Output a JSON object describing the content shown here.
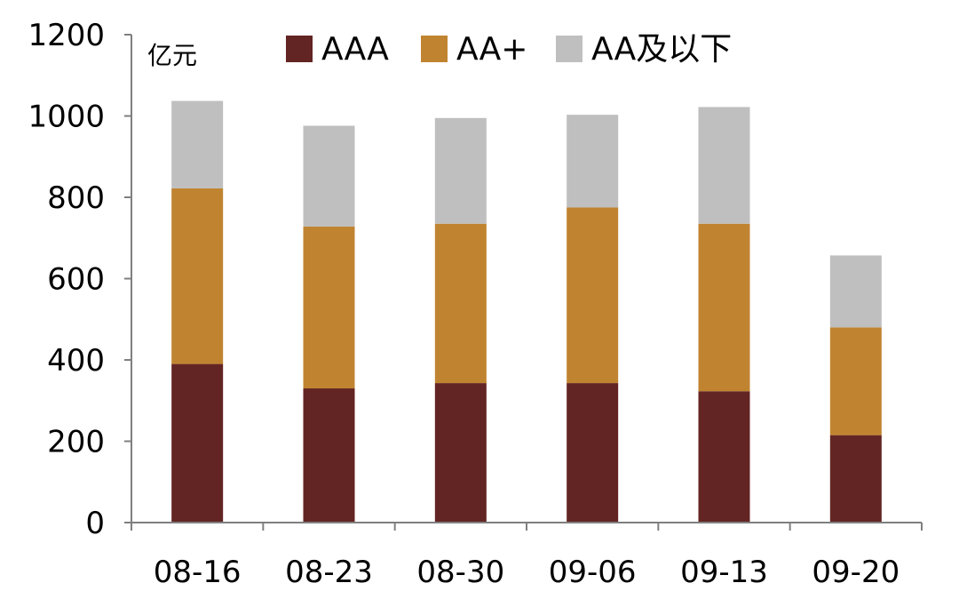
{
  "chart_data": {
    "type": "bar",
    "stacked": true,
    "title": "",
    "xlabel": "",
    "ylabel": "亿元",
    "categories": [
      "08-16",
      "08-23",
      "08-30",
      "09-06",
      "09-13",
      "09-20"
    ],
    "series": [
      {
        "name": "AAA",
        "color": "#632523",
        "values": [
          390,
          330,
          343,
          343,
          323,
          215
        ]
      },
      {
        "name": "AA+",
        "color": "#C08431",
        "values": [
          432,
          398,
          392,
          432,
          412,
          265
        ]
      },
      {
        "name": "AA及以下",
        "color": "#BFBFBF",
        "values": [
          215,
          248,
          260,
          228,
          287,
          177
        ]
      }
    ],
    "ylim": [
      0,
      1200
    ],
    "yticks": [
      0,
      200,
      400,
      600,
      800,
      1000,
      1200
    ],
    "grid": false,
    "legend_position": "top"
  }
}
